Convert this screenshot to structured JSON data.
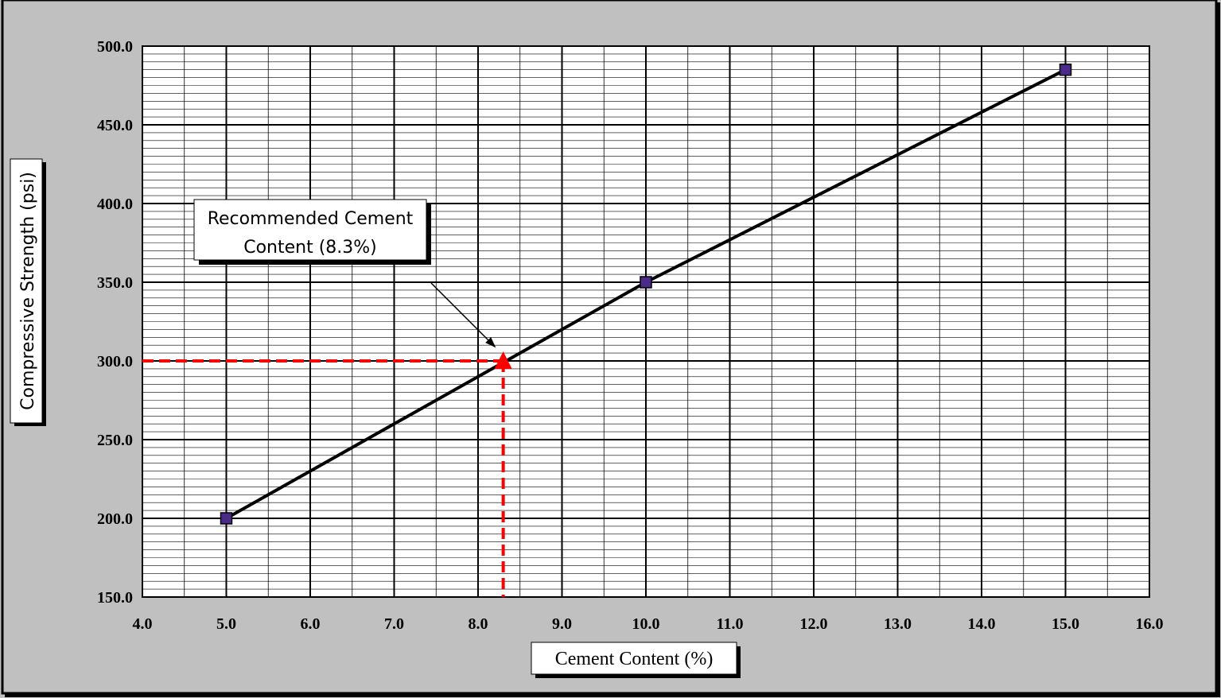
{
  "chart_data": {
    "type": "line",
    "title": "",
    "xlabel": "Cement Content (%)",
    "ylabel": "Compressive Strength (psi)",
    "xlim": [
      4.0,
      16.0
    ],
    "ylim": [
      150.0,
      500.0
    ],
    "x_ticks": [
      "4.0",
      "5.0",
      "6.0",
      "7.0",
      "8.0",
      "9.0",
      "10.0",
      "11.0",
      "12.0",
      "13.0",
      "14.0",
      "15.0",
      "16.0"
    ],
    "y_ticks": [
      "150.0",
      "200.0",
      "250.0",
      "300.0",
      "350.0",
      "400.0",
      "450.0",
      "500.0"
    ],
    "grid": true,
    "series": [
      {
        "x": [
          5.0,
          10.0,
          15.0
        ],
        "y": [
          200.0,
          350.0,
          485.0
        ],
        "color": "#000000",
        "marker": "square",
        "marker_color": "#4b2a8a"
      }
    ],
    "recommended_point": {
      "x": 8.3,
      "y": 300.0,
      "color": "#ff0000",
      "marker": "triangle"
    },
    "annotation": {
      "lines": [
        "Recommended Cement",
        "Content (8.3%)"
      ]
    }
  }
}
